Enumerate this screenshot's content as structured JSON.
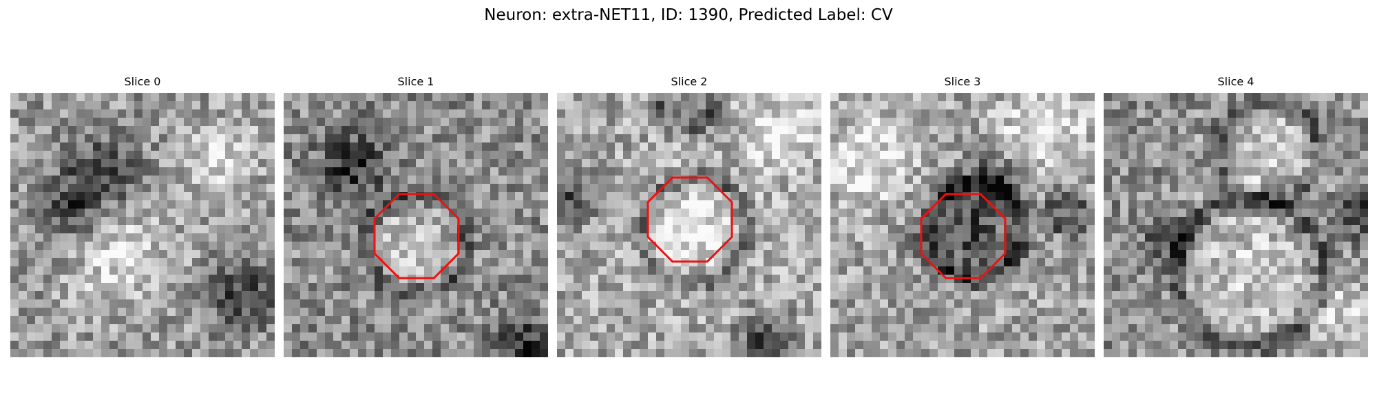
{
  "figure": {
    "title": "Neuron: extra-NET11, ID: 1390, Predicted Label: CV"
  },
  "slices": [
    {
      "label": "Slice 0",
      "roi_shown": false
    },
    {
      "label": "Slice 1",
      "roi_shown": true
    },
    {
      "label": "Slice 2",
      "roi_shown": true
    },
    {
      "label": "Slice 3",
      "roi_shown": true
    },
    {
      "label": "Slice 4",
      "roi_shown": false
    }
  ],
  "colors": {
    "roi_outline": "#ee1111",
    "image_colormap": "gray"
  }
}
